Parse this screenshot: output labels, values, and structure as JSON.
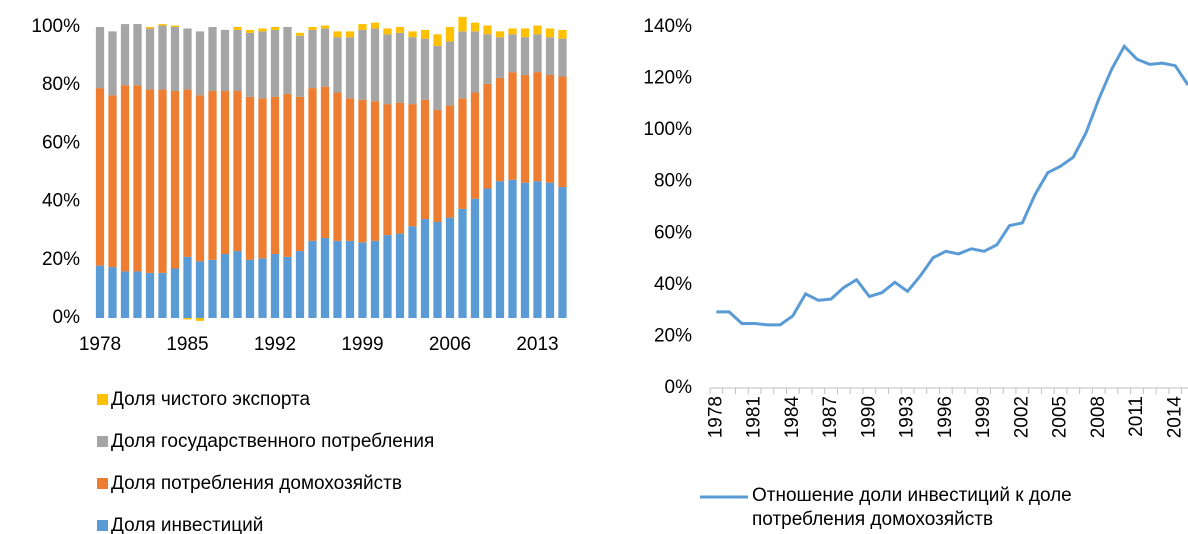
{
  "chart_data": [
    {
      "type": "stacked-bar",
      "categories": [
        "1978",
        null,
        null,
        null,
        null,
        null,
        null,
        "1985",
        null,
        null,
        null,
        null,
        null,
        null,
        "1992",
        null,
        null,
        null,
        null,
        null,
        null,
        "1999",
        null,
        null,
        null,
        null,
        null,
        null,
        "2006",
        null,
        null,
        null,
        null,
        null,
        null,
        "2013",
        null,
        null
      ],
      "series": [
        {
          "name": "Доля инвестиций",
          "color": "#5b9bd5",
          "values": [
            18,
            17.5,
            16,
            16,
            15.5,
            15.5,
            17,
            21,
            19.5,
            20,
            22,
            23,
            20,
            20.5,
            22,
            21,
            23,
            26.5,
            27.5,
            26.5,
            26.5,
            26,
            26.5,
            28.5,
            29,
            31.5,
            34,
            33,
            34.5,
            37.5,
            41,
            44.5,
            47,
            47.5,
            46.5,
            47,
            46.5,
            45
          ]
        },
        {
          "name": "Доля потребления домохозяйств",
          "color": "#ed7d31",
          "values": [
            61,
            59,
            64,
            64,
            63,
            63,
            61,
            57.5,
            57,
            58,
            56,
            55,
            56,
            55,
            54,
            56,
            53,
            52.5,
            52,
            51,
            49,
            49,
            48,
            45,
            45,
            42,
            41,
            38.5,
            38.5,
            38,
            36.5,
            36,
            35.5,
            37,
            37,
            37.5,
            37,
            38
          ]
        },
        {
          "name": "Доля государственного потребления",
          "color": "#a5a5a5",
          "values": [
            21,
            22,
            21,
            21,
            21,
            22,
            22,
            21,
            22,
            22,
            21,
            21,
            22,
            23,
            23,
            23,
            21,
            20,
            20,
            19,
            21,
            24,
            25,
            24,
            24,
            23,
            21,
            22,
            22,
            23,
            21,
            17,
            14,
            13,
            13,
            13,
            13,
            13
          ]
        },
        {
          "name": "Доля чистого экспорта",
          "color": "#ffc000",
          "values": [
            0,
            0,
            0,
            0,
            0.5,
            0.5,
            0.5,
            -0.5,
            -1,
            0,
            0,
            1,
            1,
            1,
            1,
            0,
            1,
            1,
            1,
            2,
            2,
            2,
            2,
            2,
            2,
            2,
            3,
            4,
            5,
            5,
            3,
            3,
            2,
            2,
            3,
            3,
            3,
            3
          ]
        }
      ],
      "ylim": [
        0,
        100
      ],
      "yticks": [
        {
          "value": 0,
          "label": "0%"
        },
        {
          "value": 20,
          "label": "20%"
        },
        {
          "value": 40,
          "label": "40%"
        },
        {
          "value": 60,
          "label": "60%"
        },
        {
          "value": 80,
          "label": "80%"
        },
        {
          "value": 100,
          "label": "100%"
        }
      ],
      "legend": "bottom"
    },
    {
      "type": "line",
      "categories": [
        "1978",
        null,
        null,
        "1981",
        null,
        null,
        "1984",
        null,
        null,
        "1987",
        null,
        null,
        "1990",
        null,
        null,
        "1993",
        null,
        null,
        "1996",
        null,
        null,
        "1999",
        null,
        null,
        "2002",
        null,
        null,
        "2005",
        null,
        null,
        "2008",
        null,
        null,
        "2011",
        null,
        null,
        "2014",
        null
      ],
      "series": [
        {
          "name": "Отношение доли инвестиций к доле потребления домохозяйств",
          "color": "#5b9bd5",
          "values": [
            29.5,
            29.5,
            25,
            25,
            24.5,
            24.5,
            28,
            36.5,
            34,
            34.5,
            39,
            42,
            35.5,
            37,
            41,
            37.5,
            43.5,
            50.5,
            53,
            52,
            54,
            53,
            55.5,
            63,
            64,
            75,
            83.5,
            86,
            89.5,
            99,
            112,
            123.5,
            132.5,
            127.5,
            125.5,
            126,
            125,
            117.5
          ]
        }
      ],
      "ylim": [
        0,
        140
      ],
      "yticks": [
        {
          "value": 0,
          "label": "0%"
        },
        {
          "value": 20,
          "label": "20%"
        },
        {
          "value": 40,
          "label": "40%"
        },
        {
          "value": 60,
          "label": "60%"
        },
        {
          "value": 80,
          "label": "80%"
        },
        {
          "value": 100,
          "label": "100%"
        },
        {
          "value": 120,
          "label": "120%"
        },
        {
          "value": 140,
          "label": "140%"
        }
      ],
      "legend": "bottom"
    }
  ]
}
